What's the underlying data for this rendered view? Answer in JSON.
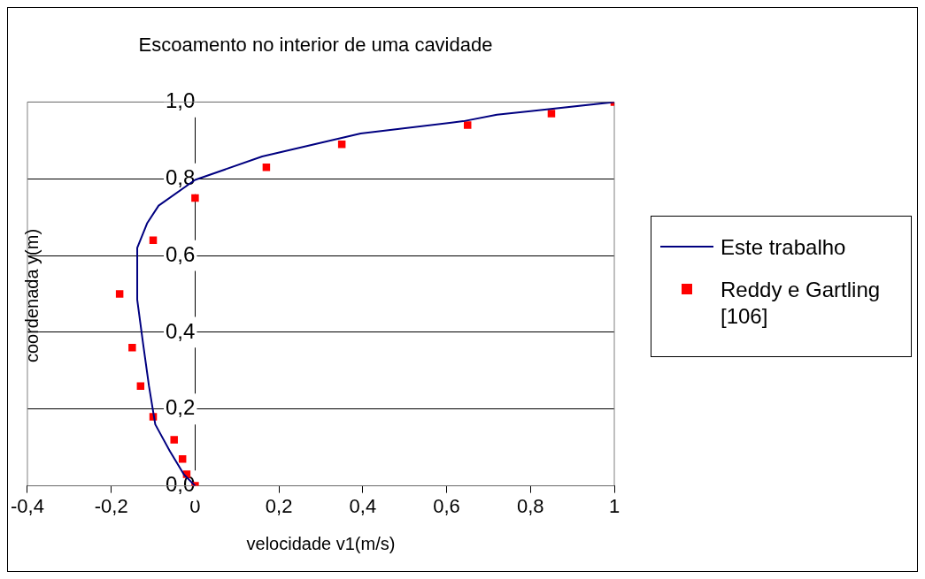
{
  "chart_data": {
    "type": "line",
    "title": "Escoamento no interior de uma cavidade",
    "xlabel": "velocidade v1(m/s)",
    "ylabel": "coordenada y(m)",
    "xlim": [
      -0.4,
      1
    ],
    "ylim": [
      0,
      1
    ],
    "xticks": [
      {
        "value": -0.4,
        "label": "-0,4"
      },
      {
        "value": -0.2,
        "label": "-0,2"
      },
      0,
      {
        "value": 0.2,
        "label": "0,2"
      },
      {
        "value": 0.4,
        "label": "0,4"
      },
      {
        "value": 0.6,
        "label": "0,6"
      },
      {
        "value": 0.8,
        "label": "0,8"
      },
      1
    ],
    "yticks": [
      {
        "value": 0,
        "label": "0,0"
      },
      {
        "value": 0.2,
        "label": "0,2"
      },
      {
        "value": 0.4,
        "label": "0,4"
      },
      {
        "value": 0.6,
        "label": "0,6"
      },
      {
        "value": 0.8,
        "label": "0,8"
      },
      {
        "value": 1,
        "label": "1,0"
      }
    ],
    "grid": "y",
    "legend": "right",
    "series": [
      {
        "name": "Este trabalho",
        "color": "#000080",
        "marker": "none",
        "line_style": "solid",
        "x": [
          0,
          -0.027,
          -0.06,
          -0.095,
          -0.11,
          -0.124,
          -0.138,
          -0.138,
          -0.114,
          -0.087,
          0,
          0.16,
          0.395,
          0.64,
          0.72,
          0.8,
          1
        ],
        "values": [
          0,
          0.03,
          0.09,
          0.16,
          0.26,
          0.37,
          0.485,
          0.62,
          0.685,
          0.73,
          0.797,
          0.858,
          0.918,
          0.95,
          0.967,
          0.976,
          1
        ]
      },
      {
        "name": "Reddy e Gartling [106]",
        "type": "scatter",
        "color": "#ff0000",
        "marker": "square",
        "x": [
          1,
          0.85,
          0.65,
          0.35,
          0.17,
          0,
          -0.1,
          -0.18,
          -0.15,
          -0.13,
          -0.1,
          -0.05,
          -0.03,
          -0.02,
          0
        ],
        "values": [
          1,
          0.97,
          0.94,
          0.89,
          0.83,
          0.75,
          0.64,
          0.5,
          0.36,
          0.26,
          0.18,
          0.12,
          0.07,
          0.03,
          0
        ]
      }
    ]
  }
}
